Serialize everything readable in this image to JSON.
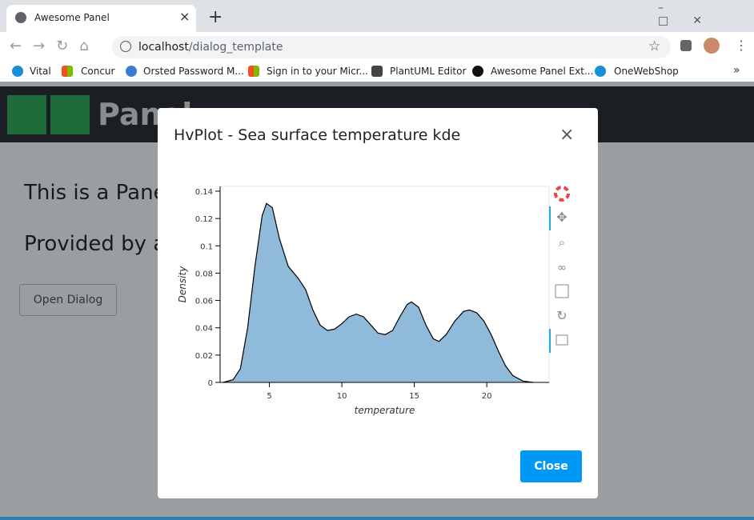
{
  "browser": {
    "tab_title": "Awesome Panel",
    "url_host": "localhost",
    "url_path": "/dialog_template",
    "bookmarks": [
      "Vital",
      "Concur",
      "Orsted Password M...",
      "Sign in to your Micr...",
      "PlantUML Editor",
      "Awesome Panel Ext...",
      "OneWebShop"
    ]
  },
  "app": {
    "brand": "Panel",
    "headings": [
      "This is a Pane",
      "Provided by a"
    ],
    "button": "Open Dialog"
  },
  "dialog": {
    "title": "HvPlot - Sea surface temperature kde",
    "close_button": "Close"
  },
  "chart_data": {
    "type": "area",
    "x_label": "temperature",
    "y_label": "Density",
    "color": "#8fbad9",
    "line_color": "#000000",
    "x": [
      1.8,
      2.5,
      3,
      3.5,
      4,
      4.5,
      4.8,
      5.2,
      5.7,
      6.3,
      7,
      7.5,
      8,
      8.5,
      9,
      9.5,
      10,
      10.5,
      11,
      11.5,
      12,
      12.5,
      13,
      13.5,
      14,
      14.5,
      14.8,
      15.3,
      15.8,
      16.3,
      16.7,
      17.2,
      17.8,
      18.4,
      18.8,
      19.3,
      19.8,
      20.3,
      20.8,
      21.3,
      21.8,
      22.5,
      23.2
    ],
    "values": [
      0,
      0.002,
      0.01,
      0.04,
      0.085,
      0.122,
      0.131,
      0.128,
      0.105,
      0.085,
      0.076,
      0.068,
      0.053,
      0.042,
      0.038,
      0.039,
      0.043,
      0.048,
      0.05,
      0.048,
      0.042,
      0.036,
      0.035,
      0.038,
      0.048,
      0.057,
      0.059,
      0.055,
      0.042,
      0.032,
      0.03,
      0.035,
      0.045,
      0.052,
      0.053,
      0.051,
      0.045,
      0.035,
      0.023,
      0.012,
      0.005,
      0.001,
      0
    ],
    "xlim": [
      1.6,
      24.3
    ],
    "ylim": [
      0,
      0.1435
    ],
    "xticks": [
      5,
      10,
      15,
      20
    ],
    "yticks": [
      0,
      0.02,
      0.04,
      0.06,
      0.08,
      0.1,
      0.12,
      0.14
    ]
  }
}
